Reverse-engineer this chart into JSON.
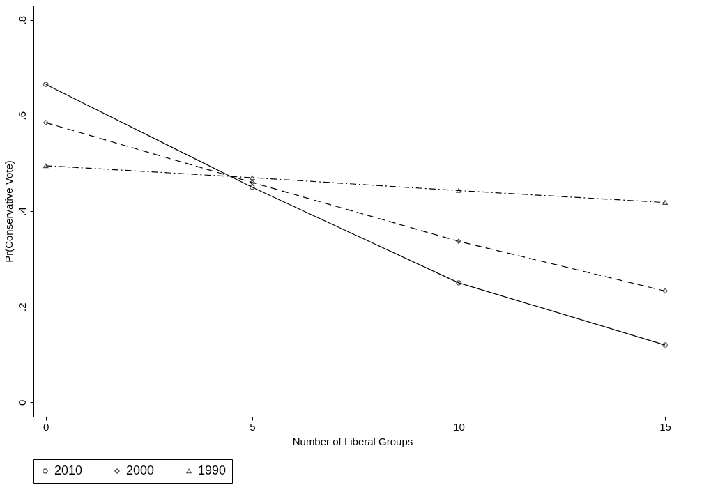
{
  "chart_data": {
    "type": "line",
    "xlabel": "Number of Liberal Groups",
    "ylabel": "Pr(Conservative Vote)",
    "x": [
      0,
      5,
      10,
      15
    ],
    "series": [
      {
        "name": "2010",
        "color": "#000000",
        "marker": "circle",
        "line_style": "solid",
        "values": [
          0.665,
          0.45,
          0.25,
          0.12
        ]
      },
      {
        "name": "2000",
        "color": "#000000",
        "marker": "diamond",
        "line_style": "dashed",
        "values": [
          0.585,
          0.46,
          0.337,
          0.233
        ]
      },
      {
        "name": "1990",
        "color": "#000000",
        "marker": "triangle",
        "line_style": "dashdot",
        "values": [
          0.495,
          0.47,
          0.443,
          0.418
        ]
      }
    ],
    "xlim": [
      -0.3,
      15.15
    ],
    "xticks": [
      0,
      5,
      10,
      15
    ],
    "ylim": [
      -0.03,
      0.83
    ],
    "yticks": [
      0,
      {
        "value": 0.2,
        "label": ".2"
      },
      {
        "value": 0.4,
        "label": ".4"
      },
      {
        "value": 0.6,
        "label": ".6"
      },
      {
        "value": 0.8,
        "label": ".8"
      }
    ],
    "grid": false,
    "legend": "bottom"
  }
}
